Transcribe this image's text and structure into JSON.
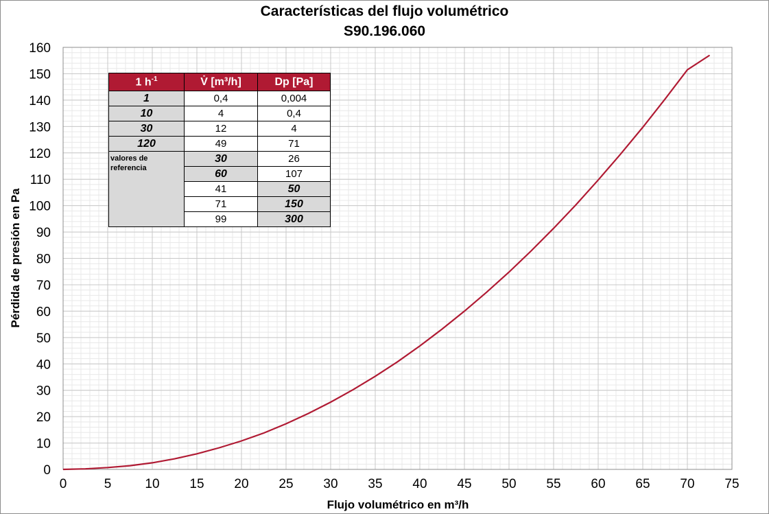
{
  "title_line1": "Características del flujo volumétrico",
  "title_line2": "S90.196.060",
  "chart_data": {
    "type": "line",
    "xlabel": "Flujo volumétrico en m³/h",
    "ylabel": "Pérdida de presión en Pa",
    "xlim": [
      0,
      75
    ],
    "ylim": [
      0,
      160
    ],
    "x_ticks": [
      0,
      5,
      10,
      15,
      20,
      25,
      30,
      35,
      40,
      45,
      50,
      55,
      60,
      65,
      70,
      75
    ],
    "y_ticks": [
      0,
      10,
      20,
      30,
      40,
      50,
      60,
      70,
      80,
      90,
      100,
      110,
      120,
      130,
      140,
      150,
      160
    ],
    "grid": true,
    "line_color": "#b01a33",
    "series": [
      {
        "x": [
          0,
          2.5,
          5,
          7.5,
          10,
          12.5,
          15,
          17.5,
          20,
          22.5,
          25,
          27.5,
          30,
          32.5,
          35,
          37.5,
          40,
          42.5,
          45,
          47.5,
          50,
          52.5,
          55,
          57.5,
          60,
          62.5,
          65,
          67.5,
          70,
          72.5
        ],
        "y": [
          0,
          0.2,
          0.7,
          1.4,
          2.5,
          4.0,
          5.9,
          8.2,
          10.8,
          13.8,
          17.3,
          21.2,
          25.5,
          30.2,
          35.3,
          40.8,
          46.8,
          53.2,
          60.0,
          67.2,
          74.8,
          82.9,
          91.4,
          100.3,
          109.7,
          119.5,
          129.7,
          140.4,
          151.5,
          157.0
        ]
      }
    ]
  },
  "table": {
    "headers": [
      "1 h",
      "-1",
      "V̇ [m³/h]",
      "Dp [Pa]"
    ],
    "rows": [
      [
        "1",
        "0,4",
        "0,004"
      ],
      [
        "10",
        "4",
        "0,4"
      ],
      [
        "30",
        "12",
        "4"
      ],
      [
        "120",
        "49",
        "71"
      ]
    ],
    "note": "valores de referencia",
    "ref_rows": [
      [
        "30",
        "26"
      ],
      [
        "60",
        "107"
      ],
      [
        "41",
        "50"
      ],
      [
        "71",
        "150"
      ],
      [
        "99",
        "300"
      ]
    ]
  }
}
